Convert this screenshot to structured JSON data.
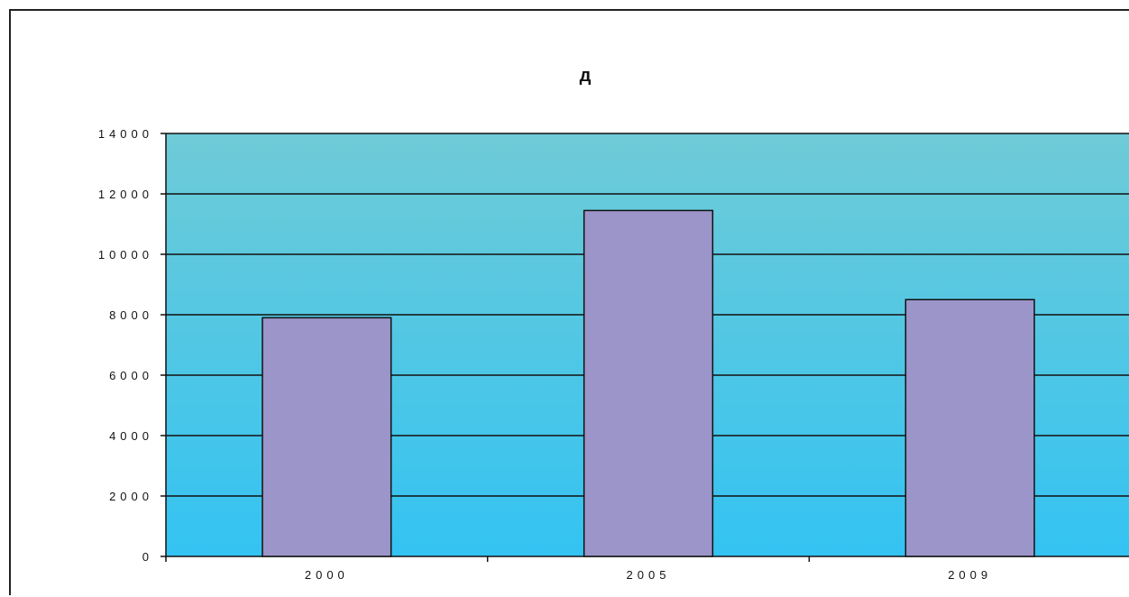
{
  "chart_data": {
    "type": "bar",
    "title": "д",
    "categories": [
      "2000",
      "2005",
      "2009"
    ],
    "values": [
      7900,
      11450,
      8500
    ],
    "ylim": [
      0,
      14000
    ],
    "yticks": [
      0,
      2000,
      4000,
      6000,
      8000,
      10000,
      12000,
      14000
    ],
    "ytick_labels": [
      "0",
      "2000",
      "4000",
      "6000",
      "8000",
      "10000",
      "12000",
      "14000"
    ],
    "xlabel": "",
    "ylabel": "",
    "grid": true,
    "legend": "none"
  },
  "colors": {
    "bar_fill": "#9b95c9",
    "plot_bg_top": "#6fcbd7",
    "plot_bg_bottom": "#33c3f2",
    "grid_line": "#111111",
    "bar_outline": "#111111"
  }
}
